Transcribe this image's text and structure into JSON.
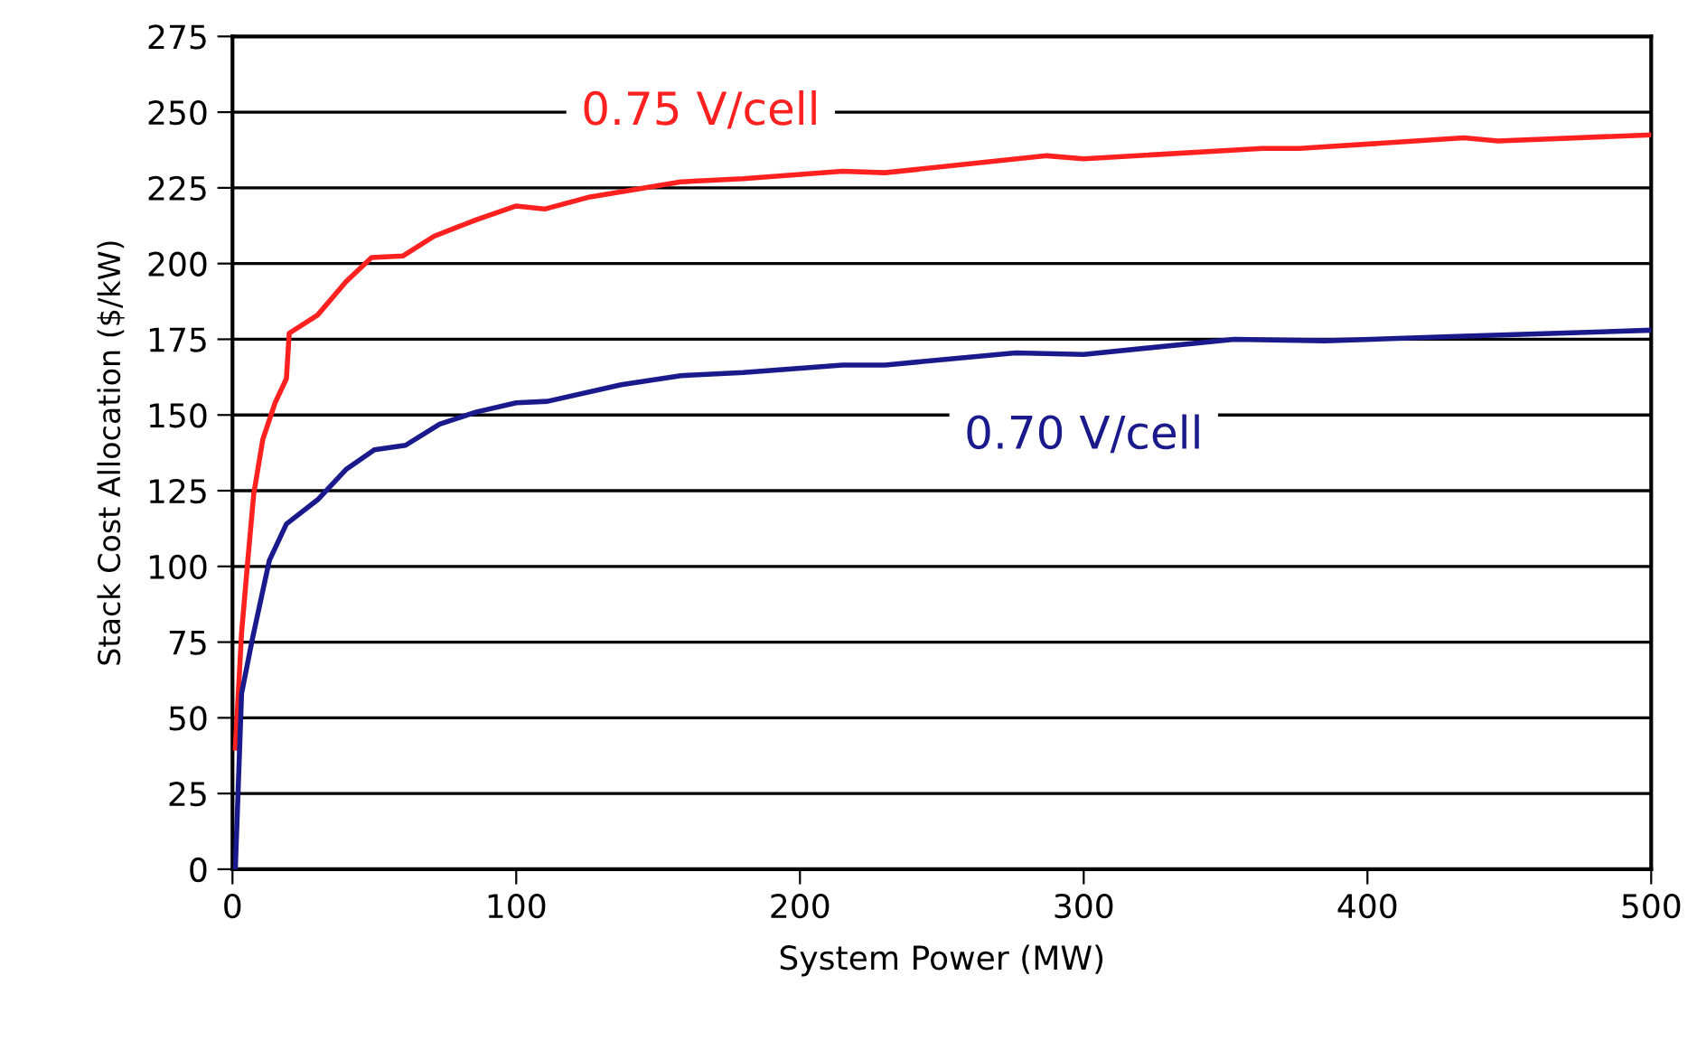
{
  "chart_data": {
    "type": "line",
    "xlabel": "System Power (MW)",
    "ylabel": "Stack Cost Allocation ($/kW)",
    "series": [
      {
        "name": "0.75 V/cell",
        "color": "#ff2020",
        "x": [
          1,
          3.2,
          5.4,
          7.5,
          10.7,
          15,
          19,
          20,
          30,
          40,
          49,
          60,
          71,
          86,
          100,
          110,
          126,
          158,
          180,
          215,
          230,
          287,
          300,
          363,
          376,
          434,
          446,
          500
        ],
        "values": [
          40,
          78,
          102,
          124,
          142,
          154,
          162,
          177,
          183,
          194,
          202,
          202.5,
          209,
          214.5,
          219,
          218,
          222,
          227,
          228,
          230.5,
          230,
          235.6,
          234.6,
          238,
          238,
          241.5,
          240.5,
          242.5
        ]
      },
      {
        "name": "0.70 V/cell",
        "color": "#1a1a8c",
        "x": [
          1,
          3.2,
          7,
          13,
          19,
          30,
          40,
          50,
          61,
          73,
          86,
          100,
          111,
          137,
          158,
          180,
          215,
          230,
          276,
          300,
          353,
          385,
          434,
          500
        ],
        "values": [
          0,
          58,
          76,
          102,
          114,
          122,
          132,
          138.5,
          140,
          147,
          151,
          154,
          154.5,
          160,
          163,
          164,
          166.5,
          166.5,
          170.5,
          170,
          175,
          174.5,
          176,
          178
        ]
      }
    ],
    "xlim": [
      0,
      500
    ],
    "xticks": [
      0,
      100,
      200,
      300,
      400,
      500
    ],
    "ylim": [
      0,
      275
    ],
    "yticks": [
      0,
      25,
      50,
      75,
      100,
      125,
      150,
      175,
      200,
      225,
      250,
      275
    ],
    "grid": "y",
    "legend": false,
    "marker": "none",
    "line_style": "solid"
  }
}
